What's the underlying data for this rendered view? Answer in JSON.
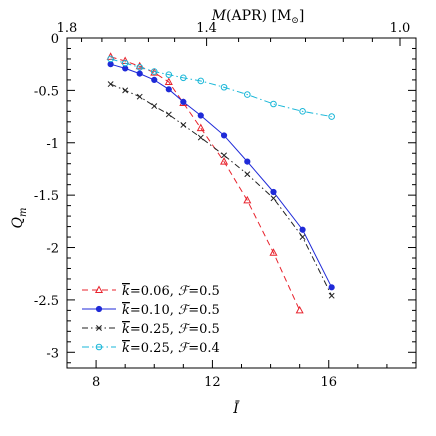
{
  "chart_data": {
    "type": "line",
    "xlabel": "Ī",
    "ylabel_main": "Q",
    "ylabel_sub": "m",
    "top_xlabel": "M(APR) [M⊙]",
    "xlim": [
      7,
      19
    ],
    "ylim": [
      -3.15,
      0
    ],
    "xticks": [
      8,
      12,
      16
    ],
    "xtick_labels": [
      "8",
      "12",
      "16"
    ],
    "yticks": [
      0,
      -0.5,
      -1,
      -1.5,
      -2,
      -2.5,
      -3
    ],
    "ytick_labels": [
      "0",
      "-0.5",
      "-1",
      "-1.5",
      "-2",
      "-2.5",
      "-3"
    ],
    "top_ticks": [
      {
        "label": "1.8",
        "x": 7.0
      },
      {
        "label": "1.4",
        "x": 11.8
      },
      {
        "label": "1.0",
        "x": 18.45
      }
    ],
    "legend_position": "bottom-left",
    "series": [
      {
        "name": "k̄=0.06,  ℱ=0.5",
        "k": "0.06",
        "f": "0.5",
        "color": "#e8232d",
        "dash": "6,4",
        "marker": "triangle",
        "x": [
          8.5,
          9.0,
          9.5,
          10.0,
          10.5,
          11.0,
          11.6,
          12.4,
          13.2,
          14.1,
          15.0
        ],
        "y": [
          -0.18,
          -0.22,
          -0.27,
          -0.33,
          -0.42,
          -0.62,
          -0.86,
          -1.18,
          -1.55,
          -2.05,
          -2.6
        ]
      },
      {
        "name": "k̄=0.10,  ℱ=0.5",
        "k": "0.10",
        "f": "0.5",
        "color": "#1f2ad8",
        "dash": "",
        "marker": "dot",
        "x": [
          8.5,
          9.0,
          9.5,
          10.0,
          10.5,
          11.0,
          11.6,
          12.4,
          13.2,
          14.1,
          15.1,
          16.1
        ],
        "y": [
          -0.25,
          -0.29,
          -0.34,
          -0.4,
          -0.49,
          -0.61,
          -0.74,
          -0.93,
          -1.18,
          -1.47,
          -1.83,
          -2.38
        ]
      },
      {
        "name": "k̄=0.25,  ℱ=0.5",
        "k": "0.25",
        "f": "0.5",
        "color": "#222222",
        "dash": "6,3,1.5,3",
        "marker": "cross",
        "x": [
          8.5,
          9.0,
          9.5,
          10.0,
          10.5,
          11.0,
          11.6,
          12.4,
          13.2,
          14.1,
          15.1,
          16.1
        ],
        "y": [
          -0.44,
          -0.5,
          -0.56,
          -0.65,
          -0.73,
          -0.83,
          -0.95,
          -1.12,
          -1.3,
          -1.53,
          -1.9,
          -2.46
        ]
      },
      {
        "name": "k̄=0.25,  ℱ=0.4",
        "k": "0.25",
        "f": "0.4",
        "color": "#1ab7d8",
        "dash": "7,3,1.5,3",
        "marker": "circle",
        "x": [
          8.5,
          9.0,
          9.5,
          10.0,
          10.5,
          11.0,
          11.6,
          12.4,
          13.2,
          14.1,
          15.1,
          16.1
        ],
        "y": [
          -0.2,
          -0.24,
          -0.28,
          -0.32,
          -0.35,
          -0.38,
          -0.41,
          -0.47,
          -0.54,
          -0.63,
          -0.7,
          -0.75
        ]
      }
    ]
  }
}
